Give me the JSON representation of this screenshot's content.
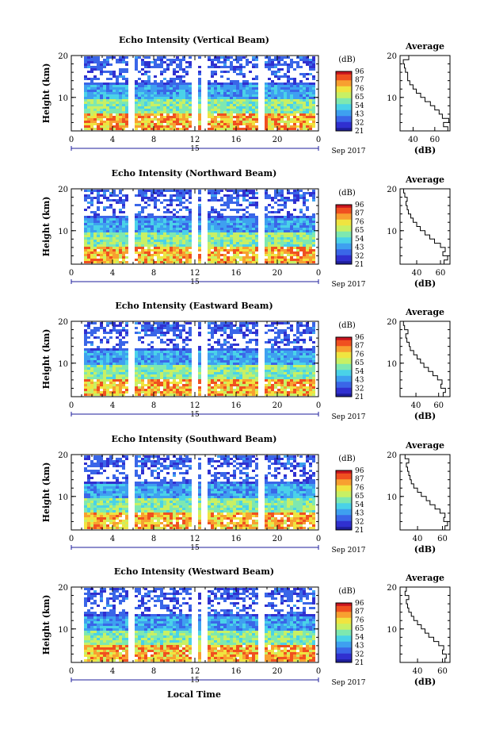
{
  "common": {
    "ylabel": "Height (km)",
    "xlabel": "Local Time",
    "date_label": "Sep 2017",
    "day_label": "15",
    "cb_unit": "(dB)",
    "avg_title": "Average",
    "avg_xlabel": "(dB)",
    "x_ticks": [
      "0",
      "4",
      "8",
      "12",
      "16",
      "20",
      "0"
    ],
    "y_ticks": [
      "20",
      "10"
    ],
    "colors": [
      "#1e1e9b",
      "#3030d0",
      "#3a66e8",
      "#3ea0f0",
      "#4ad2e8",
      "#7ee8b0",
      "#c8f064",
      "#f0e440",
      "#f8a030",
      "#f05020",
      "#c8141e"
    ]
  },
  "chart_data": [
    {
      "type": "heatmap",
      "title": "Echo Intensity (Vertical Beam)",
      "cb_labels": [
        "96",
        "87",
        "76",
        "65",
        "54",
        "43",
        "32",
        "21"
      ],
      "avg_ticks": [
        "40",
        "60"
      ],
      "avg_xlim": [
        28,
        74
      ],
      "avg_profile": {
        "heights": [
          2,
          3,
          4,
          5,
          6,
          7,
          8,
          9,
          10,
          11,
          12,
          13,
          14,
          15,
          16,
          17,
          18,
          19
        ],
        "values": [
          72,
          68,
          73,
          67,
          64,
          60,
          56,
          51,
          47,
          43,
          40,
          37,
          35,
          35,
          33,
          32,
          31,
          36
        ]
      },
      "ylim": [
        2,
        20
      ],
      "xlim": [
        0,
        24
      ]
    },
    {
      "type": "heatmap",
      "title": "Echo Intensity (Northward Beam)",
      "cb_labels": [
        "96",
        "87",
        "76",
        "65",
        "54",
        "43",
        "32",
        "21"
      ],
      "avg_ticks": [
        "40",
        "60"
      ],
      "avg_xlim": [
        26,
        68
      ],
      "avg_profile": {
        "heights": [
          2,
          3,
          4,
          5,
          6,
          7,
          8,
          9,
          10,
          11,
          12,
          13,
          14,
          15,
          16,
          17,
          18,
          19
        ],
        "values": [
          63,
          66,
          62,
          64,
          60,
          55,
          51,
          47,
          43,
          40,
          37,
          35,
          33,
          32,
          31,
          32,
          30,
          29
        ]
      },
      "ylim": [
        2,
        20
      ],
      "xlim": [
        0,
        24
      ]
    },
    {
      "type": "heatmap",
      "title": "Echo Intensity (Eastward Beam)",
      "cb_labels": [
        "96",
        "87",
        "76",
        "65",
        "54",
        "43",
        "32",
        "21"
      ],
      "avg_ticks": [
        "40",
        "60"
      ],
      "avg_xlim": [
        26,
        70
      ],
      "avg_profile": {
        "heights": [
          2,
          3,
          4,
          5,
          6,
          7,
          8,
          9,
          10,
          11,
          12,
          13,
          14,
          15,
          16,
          17,
          18,
          19
        ],
        "values": [
          64,
          66,
          62,
          63,
          59,
          55,
          51,
          47,
          44,
          41,
          38,
          35,
          34,
          32,
          31,
          33,
          30,
          29
        ]
      },
      "ylim": [
        2,
        20
      ],
      "xlim": [
        0,
        24
      ]
    },
    {
      "type": "heatmap",
      "title": "Echo Intensity (Southward Beam)",
      "cb_labels": [
        "96",
        "87",
        "76",
        "65",
        "54",
        "43",
        "32",
        "21"
      ],
      "avg_ticks": [
        "40",
        "60"
      ],
      "avg_xlim": [
        26,
        66
      ],
      "avg_profile": {
        "heights": [
          2,
          3,
          4,
          5,
          6,
          7,
          8,
          9,
          10,
          11,
          12,
          13,
          14,
          15,
          16,
          17,
          18,
          19
        ],
        "values": [
          62,
          64,
          61,
          62,
          58,
          54,
          50,
          47,
          43,
          40,
          37,
          35,
          34,
          33,
          32,
          31,
          33,
          30
        ]
      },
      "ylim": [
        2,
        20
      ],
      "xlim": [
        0,
        24
      ]
    },
    {
      "type": "heatmap",
      "title": "Echo Intensity (Westward Beam)",
      "cb_labels": [
        "96",
        "87",
        "76",
        "65",
        "54",
        "43",
        "32",
        "21"
      ],
      "avg_ticks": [
        "40",
        "60"
      ],
      "avg_xlim": [
        26,
        66
      ],
      "avg_profile": {
        "heights": [
          2,
          3,
          4,
          5,
          6,
          7,
          8,
          9,
          10,
          11,
          12,
          13,
          14,
          15,
          16,
          17,
          18,
          19
        ],
        "values": [
          62,
          63,
          60,
          61,
          57,
          53,
          49,
          46,
          43,
          40,
          37,
          35,
          33,
          32,
          31,
          33,
          30,
          31
        ]
      },
      "ylim": [
        2,
        20
      ],
      "xlim": [
        0,
        24
      ]
    }
  ]
}
